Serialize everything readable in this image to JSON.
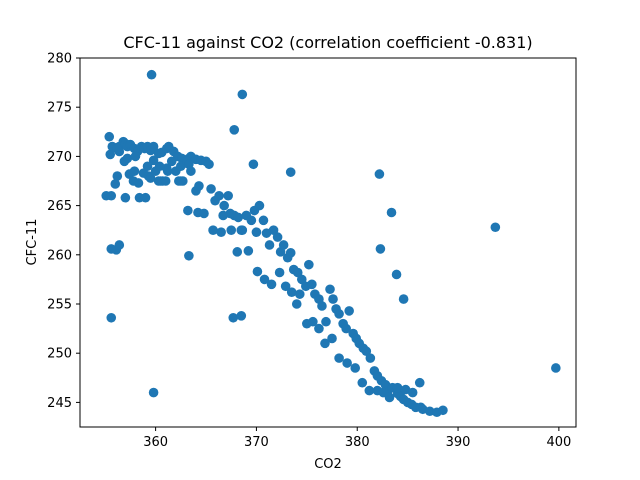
{
  "chart_data": {
    "type": "scatter",
    "title": "CFC-11 against CO2 (correlation coefficient -0.831)",
    "xlabel": "CO2",
    "ylabel": "CFC-11",
    "xlim": [
      352.5,
      401.7
    ],
    "ylim": [
      242.5,
      280.0
    ],
    "xticks": [
      360,
      370,
      380,
      390,
      400
    ],
    "yticks": [
      245,
      250,
      255,
      260,
      265,
      270,
      275,
      280
    ],
    "grid": false,
    "legend": "none",
    "marker_color": "#1f77b4",
    "series": [
      {
        "x": [
          355.1,
          355.5,
          355.4,
          355.7,
          355.6,
          356.0,
          356.2,
          356.4,
          356.2,
          356.4,
          356.8,
          357.0,
          357.2,
          357.5,
          357.9,
          358.2,
          358.6,
          358.9,
          359.2,
          359.5,
          359.8,
          360.3,
          360.6,
          361.1,
          361.3,
          361.8,
          362.2,
          362.6,
          363.3,
          363.5,
          364.0,
          364.5,
          365.0,
          365.3,
          356.1,
          356.4,
          356.9,
          357.2,
          357.4,
          357.9,
          358.0,
          358.3,
          358.8,
          359.2,
          359.3,
          359.5,
          359.8,
          360.0,
          360.3,
          360.4,
          360.7,
          361.1,
          361.2,
          361.6,
          362.0,
          362.3,
          362.5,
          362.7,
          363.1,
          363.3,
          363.5,
          364.0,
          364.3,
          365.5,
          365.9,
          366.3,
          366.8,
          367.2,
          367.4,
          367.8,
          368.2,
          368.5,
          369.0,
          369.5,
          369.8,
          370.0,
          370.3,
          370.7,
          371.0,
          371.3,
          371.7,
          372.1,
          372.4,
          372.7,
          373.1,
          373.4,
          373.7,
          374.1,
          374.3,
          374.5,
          374.9,
          375.2,
          375.5,
          375.8,
          376.2,
          376.5,
          376.9,
          377.3,
          377.6,
          377.9,
          378.2,
          378.6,
          378.9,
          379.2,
          379.6,
          379.9,
          380.2,
          380.6,
          380.9,
          381.3,
          381.7,
          382.0,
          382.4,
          382.8,
          383.0,
          383.5,
          384.0,
          384.3,
          384.6,
          385.0,
          385.4,
          385.8,
          386.3,
          386.5,
          387.2,
          387.9,
          388.5,
          357.0,
          357.8,
          358.4,
          359.0,
          360.5,
          361.0,
          362.5,
          363.2,
          364.2,
          364.8,
          365.7,
          366.5,
          366.7,
          367.5,
          368.1,
          368.6,
          369.2,
          370.1,
          370.8,
          371.5,
          372.3,
          372.9,
          373.5,
          374.0,
          375.0,
          375.6,
          376.2,
          376.8,
          377.5,
          378.2,
          379.0,
          379.8,
          380.5,
          381.2,
          382.0,
          382.6,
          383.2,
          384.0,
          384.8,
          385.5,
          386.2,
          367.7,
          368.5,
          369.7,
          373.4,
          382.2,
          383.4,
          384.6,
          359.8,
          363.3,
          355.6,
          355.6,
          359.6,
          367.8,
          368.6,
          382.3,
          383.9,
          393.7,
          399.7
        ],
        "y": [
          266.0,
          270.2,
          272.0,
          271.0,
          266.0,
          267.2,
          268.0,
          271.0,
          270.8,
          270.5,
          271.5,
          271.3,
          271.0,
          271.2,
          270.8,
          270.5,
          271.0,
          270.8,
          271.0,
          270.6,
          271.0,
          270.3,
          270.4,
          270.8,
          271.0,
          270.5,
          270.0,
          269.8,
          269.8,
          270.0,
          269.7,
          269.6,
          269.5,
          269.2,
          260.5,
          261.0,
          269.5,
          269.8,
          268.2,
          268.5,
          270.0,
          267.3,
          268.3,
          269.0,
          268.0,
          267.8,
          269.6,
          268.5,
          267.5,
          269.0,
          267.5,
          268.8,
          268.5,
          269.5,
          268.5,
          267.5,
          269.0,
          267.5,
          269.5,
          269.2,
          268.5,
          266.5,
          267.0,
          266.7,
          265.5,
          266.0,
          265.0,
          266.0,
          264.2,
          264.0,
          263.8,
          262.5,
          264.0,
          263.5,
          264.5,
          262.3,
          265.0,
          263.5,
          262.2,
          261.0,
          262.5,
          261.8,
          260.3,
          261.0,
          259.7,
          260.2,
          258.5,
          258.2,
          256.0,
          257.5,
          256.8,
          259.0,
          257.0,
          256.0,
          255.5,
          254.8,
          253.2,
          256.5,
          255.5,
          254.5,
          254.0,
          253.0,
          252.5,
          254.3,
          252.0,
          251.5,
          251.0,
          250.5,
          250.2,
          249.5,
          248.2,
          247.7,
          247.2,
          246.8,
          246.0,
          246.5,
          245.9,
          245.6,
          245.3,
          245.0,
          244.8,
          244.5,
          244.5,
          244.3,
          244.1,
          244.0,
          244.2,
          265.8,
          267.5,
          265.8,
          265.8,
          267.5,
          267.5,
          267.5,
          264.5,
          264.3,
          264.2,
          262.5,
          262.3,
          264.0,
          262.5,
          260.3,
          262.5,
          260.4,
          258.3,
          257.5,
          257.0,
          258.2,
          256.8,
          256.2,
          255.0,
          253.0,
          253.2,
          252.5,
          251.0,
          251.5,
          249.5,
          249.0,
          248.5,
          247.0,
          246.2,
          246.2,
          246.0,
          245.5,
          246.5,
          246.3,
          246.0,
          247.0,
          253.6,
          253.8,
          269.2,
          268.4,
          268.2,
          264.3,
          255.5,
          246.0,
          259.9,
          260.6,
          253.6,
          278.3,
          272.7,
          276.3,
          260.6,
          258.0,
          262.8,
          248.5
        ]
      }
    ]
  }
}
